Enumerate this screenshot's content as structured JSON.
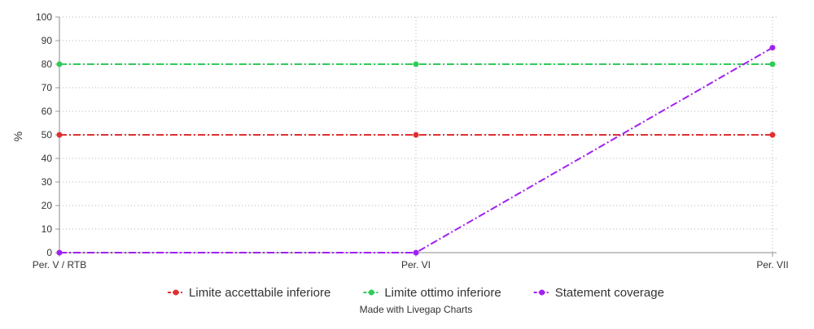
{
  "chart_data": {
    "type": "line",
    "categories": [
      "Per. V / RTB",
      "Per. VI",
      "Per. VII"
    ],
    "series": [
      {
        "name": "Limite accettabile inferiore",
        "values": [
          50,
          50,
          50
        ],
        "color": "#e03030",
        "dash": "dash-dot"
      },
      {
        "name": "Limite ottimo inferiore",
        "values": [
          80,
          80,
          80
        ],
        "color": "#2ecc5a",
        "dash": "dash-dot"
      },
      {
        "name": "Statement coverage",
        "values": [
          0,
          0,
          87
        ],
        "color": "#a020f0",
        "dash": "dash-dot"
      }
    ],
    "ylabel": "%",
    "xlabel": "",
    "ylim": [
      0,
      100
    ],
    "yticks": [
      0,
      10,
      20,
      30,
      40,
      50,
      60,
      70,
      80,
      90,
      100
    ],
    "grid": true,
    "legend_position": "bottom",
    "credit": "Made with Livegap Charts"
  }
}
